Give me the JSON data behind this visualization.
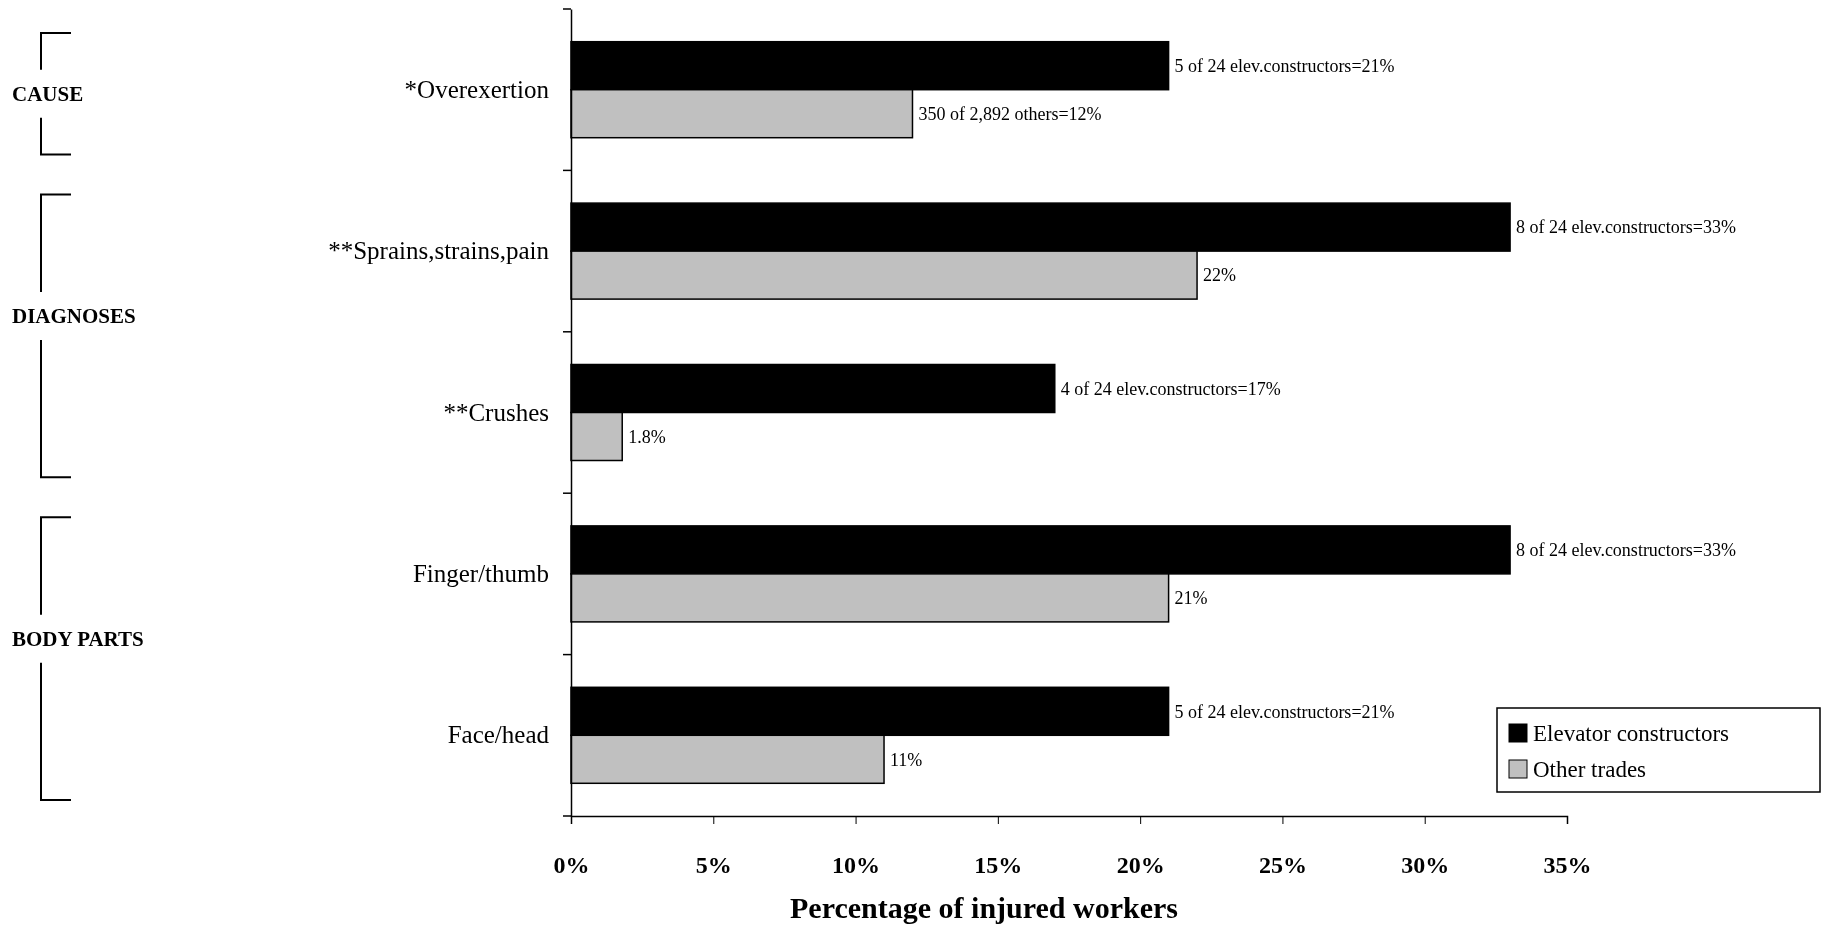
{
  "chart_data": {
    "type": "bar",
    "orientation": "horizontal",
    "xlabel": "Percentage of injured workers",
    "categories": [
      "*Overexertion",
      "**Sprains,strains,pain",
      "**Crushes",
      "Finger/thumb",
      "Face/head"
    ],
    "series": [
      {
        "name": "Elevator constructors",
        "color": "#000000",
        "values": [
          21,
          33,
          17,
          33,
          21
        ],
        "value_labels": [
          "5 of 24 elev.constructors=21%",
          "8 of 24 elev.constructors=33%",
          "4 of 24 elev.constructors=17%",
          "8 of 24 elev.constructors=33%",
          "5 of 24 elev.constructors=21%"
        ]
      },
      {
        "name": "Other trades",
        "color": "#c0c0c0",
        "values": [
          12,
          22,
          1.8,
          21,
          11
        ],
        "value_labels": [
          "350 of 2,892 others=12%",
          "22%",
          "1.8%",
          "21%",
          "11%"
        ]
      }
    ],
    "xlim": [
      0,
      35
    ],
    "xticks": [
      {
        "value": 0,
        "label": "0%"
      },
      {
        "value": 5,
        "label": "5%"
      },
      {
        "value": 10,
        "label": "10%"
      },
      {
        "value": 15,
        "label": "15%"
      },
      {
        "value": 20,
        "label": "20%"
      },
      {
        "value": 25,
        "label": "25%"
      },
      {
        "value": 30,
        "label": "30%"
      },
      {
        "value": 35,
        "label": "35%"
      }
    ],
    "annotations": [
      "CAUSE",
      "DIAGNOSES",
      "BODY PARTS"
    ],
    "grid": false,
    "legend": "bottom right"
  }
}
